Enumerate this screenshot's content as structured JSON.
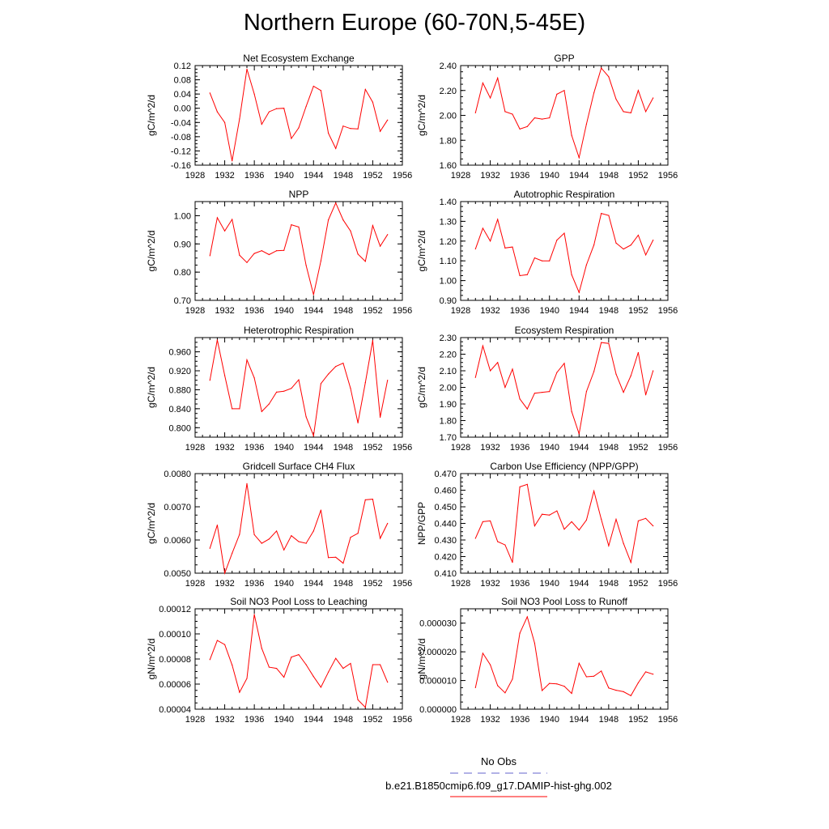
{
  "figure": {
    "title": "Northern Europe (60-70N,5-45E)",
    "legend": [
      {
        "label": "No Obs",
        "color": "#6666cc",
        "dash": true
      },
      {
        "label": "b.e21.B1850cmip6.f09_g17.DAMIP-hist-ghg.002",
        "color": "#ff0000",
        "dash": false
      }
    ]
  },
  "chart_data": [
    {
      "type": "line",
      "title": "Net Ecosystem Exchange",
      "ylabel": "gC/m^2/d",
      "xlim": [
        1928,
        1956
      ],
      "x_ticks": [
        1928,
        1932,
        1936,
        1940,
        1944,
        1948,
        1952,
        1956
      ],
      "ylim": [
        -0.16,
        0.12
      ],
      "y_ticks": [
        "-0.16",
        "-0.12",
        "-0.08",
        "-0.04",
        "0.00",
        "0.04",
        "0.08",
        "0.12"
      ],
      "x": [
        1930,
        1931,
        1932,
        1933,
        1934,
        1935,
        1936,
        1937,
        1938,
        1939,
        1940,
        1941,
        1942,
        1943,
        1944,
        1945,
        1946,
        1947,
        1948,
        1949,
        1950,
        1951,
        1952,
        1953,
        1954
      ],
      "series": [
        {
          "color": "#ff0000",
          "values": [
            0.043,
            -0.01,
            -0.04,
            -0.148,
            -0.03,
            0.11,
            0.04,
            -0.045,
            -0.01,
            -0.001,
            0.0,
            -0.085,
            -0.055,
            0.005,
            0.062,
            0.05,
            -0.07,
            -0.113,
            -0.05,
            -0.057,
            -0.058,
            0.053,
            0.017,
            -0.065,
            -0.033
          ]
        }
      ]
    },
    {
      "type": "line",
      "title": "GPP",
      "ylabel": "gC/m^2/d",
      "xlim": [
        1928,
        1956
      ],
      "x_ticks": [
        1928,
        1932,
        1936,
        1940,
        1944,
        1948,
        1952,
        1956
      ],
      "ylim": [
        1.6,
        2.4
      ],
      "y_ticks": [
        "1.60",
        "1.80",
        "2.00",
        "2.20",
        "2.40"
      ],
      "x": [
        1930,
        1931,
        1932,
        1933,
        1934,
        1935,
        1936,
        1937,
        1938,
        1939,
        1940,
        1941,
        1942,
        1943,
        1944,
        1945,
        1946,
        1947,
        1948,
        1949,
        1950,
        1951,
        1952,
        1953,
        1954
      ],
      "series": [
        {
          "color": "#ff0000",
          "values": [
            2.02,
            2.26,
            2.14,
            2.3,
            2.03,
            2.01,
            1.89,
            1.91,
            1.98,
            1.97,
            1.98,
            2.17,
            2.2,
            1.84,
            1.66,
            1.93,
            2.18,
            2.38,
            2.31,
            2.13,
            2.03,
            2.02,
            2.2,
            2.03,
            2.14
          ]
        }
      ]
    },
    {
      "type": "line",
      "title": "NPP",
      "ylabel": "gC/m^2/d",
      "xlim": [
        1928,
        1956
      ],
      "x_ticks": [
        1928,
        1932,
        1936,
        1940,
        1944,
        1948,
        1952,
        1956
      ],
      "ylim": [
        0.7,
        1.05
      ],
      "y_ticks": [
        "0.70",
        "0.80",
        "0.90",
        "1.00"
      ],
      "x": [
        1930,
        1931,
        1932,
        1933,
        1934,
        1935,
        1936,
        1937,
        1938,
        1939,
        1940,
        1941,
        1942,
        1943,
        1944,
        1945,
        1946,
        1947,
        1948,
        1949,
        1950,
        1951,
        1952,
        1953,
        1954
      ],
      "series": [
        {
          "color": "#ff0000",
          "values": [
            0.858,
            0.993,
            0.946,
            0.987,
            0.86,
            0.834,
            0.866,
            0.876,
            0.862,
            0.876,
            0.877,
            0.968,
            0.96,
            0.824,
            0.72,
            0.84,
            0.985,
            1.045,
            0.985,
            0.946,
            0.864,
            0.838,
            0.965,
            0.892,
            0.933
          ]
        }
      ]
    },
    {
      "type": "line",
      "title": "Autotrophic Respiration",
      "ylabel": "gC/m^2/d",
      "xlim": [
        1928,
        1956
      ],
      "x_ticks": [
        1928,
        1932,
        1936,
        1940,
        1944,
        1948,
        1952,
        1956
      ],
      "ylim": [
        0.9,
        1.4
      ],
      "y_ticks": [
        "0.90",
        "1.00",
        "1.10",
        "1.20",
        "1.30",
        "1.40"
      ],
      "x": [
        1930,
        1931,
        1932,
        1933,
        1934,
        1935,
        1936,
        1937,
        1938,
        1939,
        1940,
        1941,
        1942,
        1943,
        1944,
        1945,
        1946,
        1947,
        1948,
        1949,
        1950,
        1951,
        1952,
        1953,
        1954
      ],
      "series": [
        {
          "color": "#ff0000",
          "values": [
            1.16,
            1.265,
            1.2,
            1.31,
            1.165,
            1.17,
            1.025,
            1.03,
            1.115,
            1.1,
            1.1,
            1.205,
            1.24,
            1.03,
            0.94,
            1.08,
            1.18,
            1.34,
            1.33,
            1.19,
            1.16,
            1.18,
            1.23,
            1.13,
            1.205
          ]
        }
      ]
    },
    {
      "type": "line",
      "title": "Heterotrophic Respiration",
      "ylabel": "gC/m^2/d",
      "xlim": [
        1928,
        1956
      ],
      "x_ticks": [
        1928,
        1932,
        1936,
        1940,
        1944,
        1948,
        1952,
        1956
      ],
      "ylim": [
        0.78,
        0.99
      ],
      "y_ticks": [
        "0.800",
        "0.840",
        "0.880",
        "0.920",
        "0.960"
      ],
      "x": [
        1930,
        1931,
        1932,
        1933,
        1934,
        1935,
        1936,
        1937,
        1938,
        1939,
        1940,
        1941,
        1942,
        1943,
        1944,
        1945,
        1946,
        1947,
        1948,
        1949,
        1950,
        1951,
        1952,
        1953,
        1954
      ],
      "series": [
        {
          "color": "#ff0000",
          "values": [
            0.9,
            0.985,
            0.91,
            0.84,
            0.84,
            0.943,
            0.905,
            0.834,
            0.85,
            0.875,
            0.877,
            0.883,
            0.901,
            0.823,
            0.783,
            0.893,
            0.913,
            0.929,
            0.936,
            0.883,
            0.81,
            0.895,
            0.984,
            0.822,
            0.9
          ]
        }
      ]
    },
    {
      "type": "line",
      "title": "Ecosystem Respiration",
      "ylabel": "gC/m^2/d",
      "xlim": [
        1928,
        1956
      ],
      "x_ticks": [
        1928,
        1932,
        1936,
        1940,
        1944,
        1948,
        1952,
        1956
      ],
      "ylim": [
        1.7,
        2.3
      ],
      "y_ticks": [
        "1.70",
        "1.80",
        "1.90",
        "2.00",
        "2.10",
        "2.20",
        "2.30"
      ],
      "x": [
        1930,
        1931,
        1932,
        1933,
        1934,
        1935,
        1936,
        1937,
        1938,
        1939,
        1940,
        1941,
        1942,
        1943,
        1944,
        1945,
        1946,
        1947,
        1948,
        1949,
        1950,
        1951,
        1952,
        1953,
        1954
      ],
      "series": [
        {
          "color": "#ff0000",
          "values": [
            2.06,
            2.25,
            2.1,
            2.15,
            2.0,
            2.11,
            1.93,
            1.87,
            1.965,
            1.97,
            1.975,
            2.09,
            2.145,
            1.855,
            1.72,
            1.975,
            2.095,
            2.27,
            2.265,
            2.08,
            1.97,
            2.07,
            2.21,
            1.955,
            2.1
          ]
        }
      ]
    },
    {
      "type": "line",
      "title": "Gridcell Surface CH4 Flux",
      "ylabel": "gC/m^2/d",
      "xlim": [
        1928,
        1956
      ],
      "x_ticks": [
        1928,
        1932,
        1936,
        1940,
        1944,
        1948,
        1952,
        1956
      ],
      "ylim": [
        0.005,
        0.008
      ],
      "y_ticks": [
        "0.0050",
        "0.0060",
        "0.0070",
        "0.0080"
      ],
      "x": [
        1930,
        1931,
        1932,
        1933,
        1934,
        1935,
        1936,
        1937,
        1938,
        1939,
        1940,
        1941,
        1942,
        1943,
        1944,
        1945,
        1946,
        1947,
        1948,
        1949,
        1950,
        1951,
        1952,
        1953,
        1954
      ],
      "series": [
        {
          "color": "#ff0000",
          "values": [
            0.00575,
            0.00645,
            0.005,
            0.0056,
            0.00617,
            0.0077,
            0.00616,
            0.0059,
            0.00603,
            0.00627,
            0.0057,
            0.00613,
            0.00595,
            0.0059,
            0.00627,
            0.0069,
            0.00547,
            0.00548,
            0.0053,
            0.00608,
            0.0062,
            0.00721,
            0.00723,
            0.00605,
            0.0065
          ]
        }
      ]
    },
    {
      "type": "line",
      "title": "Carbon Use Efficiency (NPP/GPP)",
      "ylabel": "NPP/GPP",
      "xlim": [
        1928,
        1956
      ],
      "x_ticks": [
        1928,
        1932,
        1936,
        1940,
        1944,
        1948,
        1952,
        1956
      ],
      "ylim": [
        0.41,
        0.47
      ],
      "y_ticks": [
        "0.410",
        "0.420",
        "0.430",
        "0.440",
        "0.450",
        "0.460",
        "0.470"
      ],
      "x": [
        1930,
        1931,
        1932,
        1933,
        1934,
        1935,
        1936,
        1937,
        1938,
        1939,
        1940,
        1941,
        1942,
        1943,
        1944,
        1945,
        1946,
        1947,
        1948,
        1949,
        1950,
        1951,
        1952,
        1953,
        1954
      ],
      "series": [
        {
          "color": "#ff0000",
          "values": [
            0.431,
            0.441,
            0.4415,
            0.429,
            0.427,
            0.4165,
            0.462,
            0.4635,
            0.4385,
            0.4455,
            0.445,
            0.4475,
            0.4365,
            0.441,
            0.436,
            0.442,
            0.4595,
            0.4425,
            0.4265,
            0.4425,
            0.428,
            0.4165,
            0.4415,
            0.443,
            0.4385
          ]
        }
      ]
    },
    {
      "type": "line",
      "title": "Soil NO3 Pool Loss to Leaching",
      "ylabel": "gN/m^2/d",
      "xlim": [
        1928,
        1956
      ],
      "x_ticks": [
        1928,
        1932,
        1936,
        1940,
        1944,
        1948,
        1952,
        1956
      ],
      "ylim": [
        4e-05,
        0.00012
      ],
      "y_ticks": [
        "0.00004",
        "0.00006",
        "0.00008",
        "0.00010",
        "0.00012"
      ],
      "x": [
        1930,
        1931,
        1932,
        1933,
        1934,
        1935,
        1936,
        1937,
        1938,
        1939,
        1940,
        1941,
        1942,
        1943,
        1944,
        1945,
        1946,
        1947,
        1948,
        1949,
        1950,
        1951,
        1952,
        1953,
        1954
      ],
      "series": [
        {
          "color": "#ff0000",
          "values": [
            7.95e-05,
            9.48e-05,
            9.15e-05,
            7.52e-05,
            5.35e-05,
            6.45e-05,
            0.0001155,
            8.85e-05,
            7.35e-05,
            7.25e-05,
            6.55e-05,
            8.15e-05,
            8.35e-05,
            7.55e-05,
            6.6e-05,
            5.75e-05,
            6.95e-05,
            8.05e-05,
            7.25e-05,
            7.65e-05,
            4.75e-05,
            4.15e-05,
            7.55e-05,
            7.55e-05,
            6.15e-05
          ]
        }
      ]
    },
    {
      "type": "line",
      "title": "Soil NO3 Pool Loss to Runoff",
      "ylabel": "gN/m^2/d",
      "xlim": [
        1928,
        1956
      ],
      "x_ticks": [
        1928,
        1932,
        1936,
        1940,
        1944,
        1948,
        1952,
        1956
      ],
      "ylim": [
        0.0,
        3.5e-05
      ],
      "y_ticks": [
        "0.000000",
        "0.000010",
        "0.000020",
        "0.000030"
      ],
      "x": [
        1930,
        1931,
        1932,
        1933,
        1934,
        1935,
        1936,
        1937,
        1938,
        1939,
        1940,
        1941,
        1942,
        1943,
        1944,
        1945,
        1946,
        1947,
        1948,
        1949,
        1950,
        1951,
        1952,
        1953,
        1954
      ],
      "series": [
        {
          "color": "#ff0000",
          "values": [
            7.5e-06,
            1.95e-05,
            1.55e-05,
            8.2e-06,
            5.7e-06,
            1.05e-05,
            2.65e-05,
            3.22e-05,
            2.3e-05,
            6.5e-06,
            9e-06,
            8.8e-06,
            8e-06,
            5.5e-06,
            1.6e-05,
            1.13e-05,
            1.15e-05,
            1.33e-05,
            7.4e-06,
            6.6e-06,
            6.1e-06,
            4.7e-06,
            9.2e-06,
            1.3e-05,
            1.22e-05
          ]
        }
      ]
    }
  ]
}
